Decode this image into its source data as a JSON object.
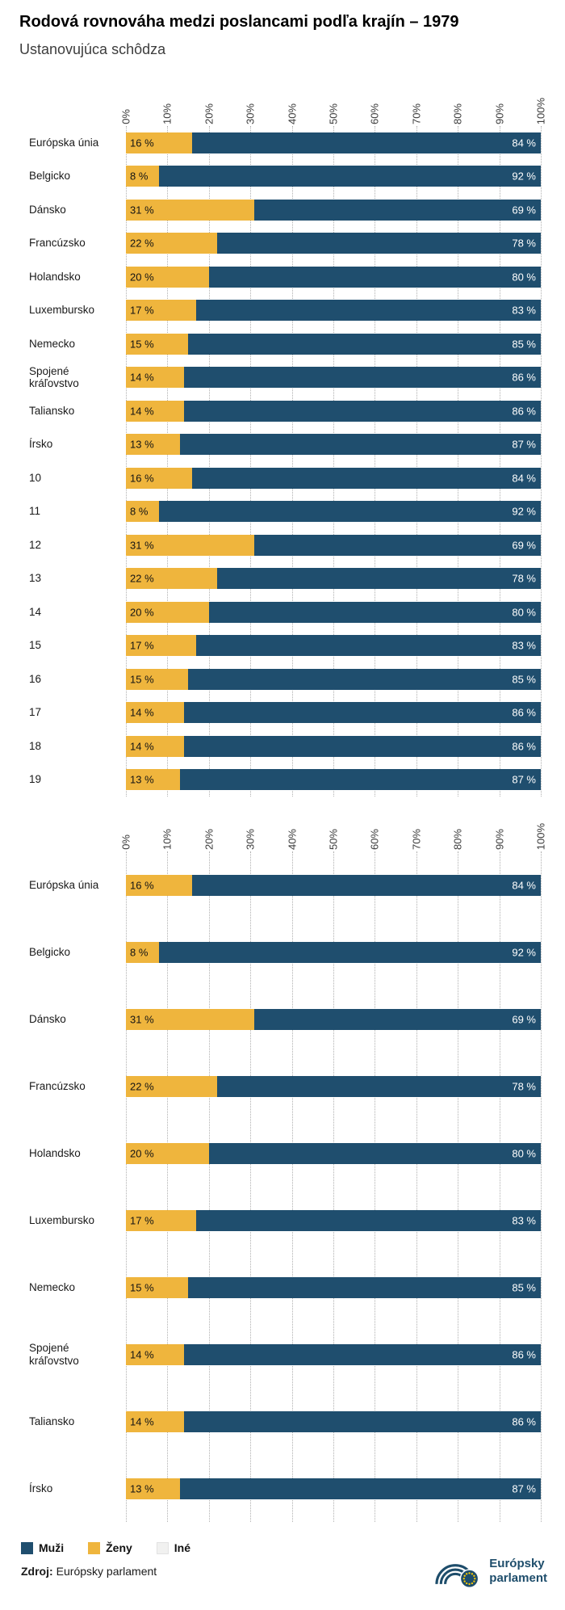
{
  "header": {
    "title": "Rodová rovnováha medzi poslancami podľa krajín – 1979",
    "subtitle": "Ustanovujúca schôdza"
  },
  "colors": {
    "men": "#1F4E6E",
    "women": "#EFB53D",
    "other": "#F1F1F0",
    "gridline": "#B0B0B0",
    "logo_blue": "#1E4D6B",
    "star_yellow": "#FFCC00"
  },
  "axis_ticks": [
    "0%",
    "10%",
    "20%",
    "30%",
    "40%",
    "50%",
    "60%",
    "70%",
    "80%",
    "90%",
    "100%"
  ],
  "value_suffix": " %",
  "legend": [
    {
      "label": "Muži",
      "color": "#1F4E6E"
    },
    {
      "label": "Ženy",
      "color": "#EFB53D"
    },
    {
      "label": "Iné",
      "color": "#F1F1F0"
    }
  ],
  "source": {
    "label": "Zdroj:",
    "text": "Európsky parlament"
  },
  "logo": {
    "line1": "Európsky",
    "line2": "parlament"
  },
  "chart_data": [
    {
      "type": "bar",
      "orientation": "horizontal",
      "stacked": true,
      "xlim": [
        0,
        100
      ],
      "unit": "%",
      "grid": "dotted-vertical",
      "categories": [
        "Európska únia",
        "Belgicko",
        "Dánsko",
        "Francúzsko",
        "Holandsko",
        "Luxembursko",
        "Nemecko",
        "Spojené kráľovstvo",
        "Taliansko",
        "Írsko",
        "10",
        "11",
        "12",
        "13",
        "14",
        "15",
        "16",
        "17",
        "18",
        "19"
      ],
      "series": [
        {
          "name": "Ženy",
          "values": [
            16,
            8,
            31,
            22,
            20,
            17,
            15,
            14,
            14,
            13,
            16,
            8,
            31,
            22,
            20,
            17,
            15,
            14,
            14,
            13
          ]
        },
        {
          "name": "Muži",
          "values": [
            84,
            92,
            69,
            78,
            80,
            83,
            85,
            86,
            86,
            87,
            84,
            92,
            69,
            78,
            80,
            83,
            85,
            86,
            86,
            87
          ]
        }
      ]
    },
    {
      "type": "bar",
      "orientation": "horizontal",
      "stacked": true,
      "xlim": [
        0,
        100
      ],
      "unit": "%",
      "grid": "dotted-vertical",
      "categories": [
        "Európska únia",
        "Belgicko",
        "Dánsko",
        "Francúzsko",
        "Holandsko",
        "Luxembursko",
        "Nemecko",
        "Spojené kráľovstvo",
        "Taliansko",
        "Írsko"
      ],
      "series": [
        {
          "name": "Ženy",
          "values": [
            16,
            8,
            31,
            22,
            20,
            17,
            15,
            14,
            14,
            13
          ]
        },
        {
          "name": "Muži",
          "values": [
            84,
            92,
            69,
            78,
            80,
            83,
            85,
            86,
            86,
            87
          ]
        }
      ]
    }
  ]
}
